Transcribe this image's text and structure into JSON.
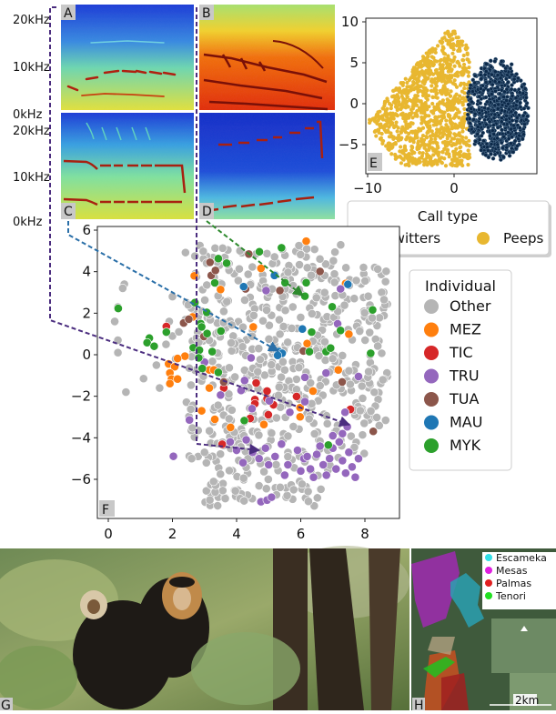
{
  "panel_labels": {
    "a": "A",
    "b": "B",
    "c": "C",
    "d": "D",
    "e": "E",
    "f": "F",
    "g": "G",
    "h": "H"
  },
  "spectrogram_axis": {
    "top": [
      "20kHz",
      "10kHz",
      "0kHz"
    ],
    "bottom": [
      "20kHz",
      "10kHz",
      "0kHz"
    ]
  },
  "chart_data": [
    {
      "panel": "E",
      "type": "scatter",
      "title": "",
      "xlabel": "",
      "ylabel": "",
      "xlim": [
        -10.2,
        9.6
      ],
      "ylim": [
        -8.5,
        10.5
      ],
      "xticks": [
        "−10",
        "0"
      ],
      "yticks": [
        "10",
        "5",
        "0",
        "−5"
      ],
      "grid": false,
      "legend": {
        "title": "Call type",
        "placement": "below",
        "entries": [
          "Twitters",
          "Peeps"
        ]
      },
      "series": [
        {
          "name": "Twitters",
          "color": "#0d2a4a",
          "region": "x 1 to 8.5, y -7 to 5.5"
        },
        {
          "name": "Peeps",
          "color": "#e8b730",
          "region": "x -9.8 to 2, y -7.5 to 9.5"
        }
      ]
    },
    {
      "panel": "F",
      "type": "scatter",
      "title": "",
      "xlabel": "",
      "ylabel": "",
      "xlim": [
        -0.34,
        9.08
      ],
      "ylim": [
        -7.88,
        6.18
      ],
      "xticks": [
        "0",
        "2",
        "4",
        "6",
        "8"
      ],
      "yticks": [
        "6",
        "4",
        "2",
        "0",
        "−2",
        "−4",
        "−6"
      ],
      "grid": false,
      "legend": {
        "title": "Individual",
        "placement": "right",
        "entries": [
          "Other",
          "MEZ",
          "TIC",
          "TRU",
          "TUA",
          "MAU",
          "MYK"
        ]
      },
      "series": [
        {
          "name": "Other",
          "color": "#b5b5b5",
          "points": []
        },
        {
          "name": "MEZ",
          "color": "#ff7f0e",
          "points": [
            [
              6.17,
              5.47
            ],
            [
              4.76,
              4.16
            ],
            [
              2.68,
              3.8
            ],
            [
              3.5,
              3.14
            ],
            [
              7.4,
              3.43
            ],
            [
              2.63,
              1.82
            ],
            [
              4.52,
              1.34
            ],
            [
              7.5,
              0.99
            ],
            [
              6.2,
              0.54
            ],
            [
              2.39,
              -0.07
            ],
            [
              2.16,
              -0.18
            ],
            [
              1.88,
              -0.44
            ],
            [
              2.07,
              -0.58
            ],
            [
              1.92,
              -0.88
            ],
            [
              1.97,
              -1.17
            ],
            [
              2.16,
              -1.17
            ],
            [
              1.92,
              -1.39
            ],
            [
              3.15,
              -0.73
            ],
            [
              3.29,
              -0.73
            ],
            [
              3.15,
              -1.6
            ],
            [
              7.17,
              -0.73
            ],
            [
              6.38,
              -1.75
            ],
            [
              5.98,
              -2.55
            ],
            [
              5.98,
              -2.99
            ],
            [
              2.91,
              -2.7
            ],
            [
              3.32,
              -3.11
            ],
            [
              3.81,
              -3.5
            ],
            [
              4.85,
              -3.36
            ]
          ]
        },
        {
          "name": "TIC",
          "color": "#d62728",
          "points": [
            [
              1.81,
              1.36
            ],
            [
              3.6,
              -1.6
            ],
            [
              4.61,
              -1.36
            ],
            [
              4.57,
              -2.16
            ],
            [
              4.57,
              -2.36
            ],
            [
              4.95,
              -2.12
            ],
            [
              4.95,
              -1.75
            ],
            [
              5.15,
              -2.41
            ],
            [
              4.99,
              -2.89
            ],
            [
              4.42,
              -3.07
            ],
            [
              5.87,
              -2.01
            ],
            [
              7.55,
              -2.63
            ],
            [
              3.55,
              -4.31
            ]
          ]
        },
        {
          "name": "TRU",
          "color": "#9467bd",
          "points": [
            [
              4.92,
              3.09
            ],
            [
              7.24,
              3.17
            ],
            [
              7.15,
              1.49
            ],
            [
              4.45,
              -0.15
            ],
            [
              3.0,
              -0.36
            ],
            [
              7.8,
              -1.05
            ],
            [
              6.79,
              -0.88
            ],
            [
              6.13,
              -1.09
            ],
            [
              4.25,
              -1.24
            ],
            [
              3.5,
              -1.94
            ],
            [
              4.14,
              -1.72
            ],
            [
              5.02,
              -2.22
            ],
            [
              6.13,
              -2.26
            ],
            [
              5.66,
              -2.77
            ],
            [
              4.48,
              -2.6
            ],
            [
              7.38,
              -2.77
            ],
            [
              7.45,
              -3.47
            ],
            [
              2.53,
              -3.14
            ],
            [
              2.03,
              -4.89
            ],
            [
              4.76,
              -7.08
            ],
            [
              4.95,
              -7.0
            ],
            [
              5.09,
              -6.86
            ],
            [
              3.8,
              -4.2
            ],
            [
              4.0,
              -4.6
            ],
            [
              4.3,
              -4.1
            ],
            [
              4.5,
              -4.7
            ],
            [
              4.9,
              -4.5
            ],
            [
              5.2,
              -4.9
            ],
            [
              5.4,
              -4.3
            ],
            [
              5.6,
              -5.3
            ],
            [
              5.9,
              -4.6
            ],
            [
              6.1,
              -5.0
            ],
            [
              6.3,
              -5.5
            ],
            [
              6.5,
              -4.8
            ],
            [
              6.7,
              -5.3
            ],
            [
              6.8,
              -5.8
            ],
            [
              6.9,
              -5.0
            ],
            [
              7.0,
              -4.5
            ],
            [
              7.1,
              -5.5
            ],
            [
              7.2,
              -4.2
            ],
            [
              7.3,
              -5.1
            ],
            [
              7.4,
              -5.7
            ],
            [
              7.5,
              -4.7
            ],
            [
              7.6,
              -5.4
            ],
            [
              7.7,
              -5.9
            ],
            [
              7.8,
              -5.0
            ],
            [
              6.4,
              -5.9
            ],
            [
              6.0,
              -5.6
            ],
            [
              5.5,
              -5.8
            ],
            [
              5.0,
              -5.3
            ],
            [
              4.7,
              -5.0
            ],
            [
              4.2,
              -5.2
            ],
            [
              6.6,
              -4.4
            ],
            [
              7.0,
              -3.9
            ],
            [
              7.3,
              -3.8
            ],
            [
              6.2,
              -4.9
            ]
          ]
        },
        {
          "name": "TUA",
          "color": "#8c564b",
          "points": [
            [
              3.17,
              4.45
            ],
            [
              3.21,
              3.82
            ],
            [
              3.34,
              4.06
            ],
            [
              4.38,
              4.85
            ],
            [
              4.28,
              3.17
            ],
            [
              5.35,
              3.09
            ],
            [
              6.6,
              4.01
            ],
            [
              2.35,
              1.53
            ],
            [
              2.51,
              1.71
            ],
            [
              2.98,
              0.88
            ],
            [
              6.08,
              0.18
            ],
            [
              3.6,
              -1.31
            ],
            [
              7.29,
              -1.31
            ],
            [
              8.26,
              -3.69
            ]
          ]
        },
        {
          "name": "MAU",
          "color": "#1f77b4",
          "points": [
            [
              4.22,
              3.28
            ],
            [
              5.18,
              3.82
            ],
            [
              6.05,
              1.24
            ],
            [
              7.47,
              3.39
            ],
            [
              5.32,
              0.15
            ],
            [
              5.42,
              0.07
            ],
            [
              5.28,
              -0.03
            ]
          ]
        },
        {
          "name": "MYK",
          "color": "#2ca02c",
          "points": [
            [
              0.31,
              2.23
            ],
            [
              1.28,
              0.8
            ],
            [
              1.21,
              0.58
            ],
            [
              1.43,
              0.41
            ],
            [
              1.81,
              1.09
            ],
            [
              3.43,
              4.63
            ],
            [
              3.69,
              4.41
            ],
            [
              3.32,
              3.46
            ],
            [
              4.71,
              4.96
            ],
            [
              5.4,
              5.15
            ],
            [
              5.51,
              3.47
            ],
            [
              6.17,
              3.47
            ],
            [
              6.13,
              2.82
            ],
            [
              6.98,
              2.31
            ],
            [
              8.24,
              2.16
            ],
            [
              2.7,
              2.51
            ],
            [
              3.07,
              2.04
            ],
            [
              2.88,
              1.5
            ],
            [
              2.91,
              1.34
            ],
            [
              3.08,
              1.02
            ],
            [
              3.51,
              1.14
            ],
            [
              2.65,
              0.34
            ],
            [
              2.84,
              0.22
            ],
            [
              3.24,
              0.15
            ],
            [
              2.82,
              -0.15
            ],
            [
              2.93,
              -0.66
            ],
            [
              3.43,
              -0.85
            ],
            [
              6.34,
              1.09
            ],
            [
              6.27,
              0.15
            ],
            [
              6.79,
              0.15
            ],
            [
              6.93,
              0.32
            ],
            [
              7.24,
              1.17
            ],
            [
              8.18,
              0.07
            ],
            [
              4.24,
              -3.17
            ],
            [
              6.86,
              -4.35
            ]
          ]
        }
      ]
    }
  ],
  "map": {
    "legend": [
      {
        "label": "Escameka",
        "color": "#33e0e8"
      },
      {
        "label": "Mesas",
        "color": "#e020e0"
      },
      {
        "label": "Palmas",
        "color": "#e02020"
      },
      {
        "label": "Tenori",
        "color": "#20e020"
      }
    ],
    "scale_label": "2km",
    "north_icon": "north-arrow-icon"
  }
}
